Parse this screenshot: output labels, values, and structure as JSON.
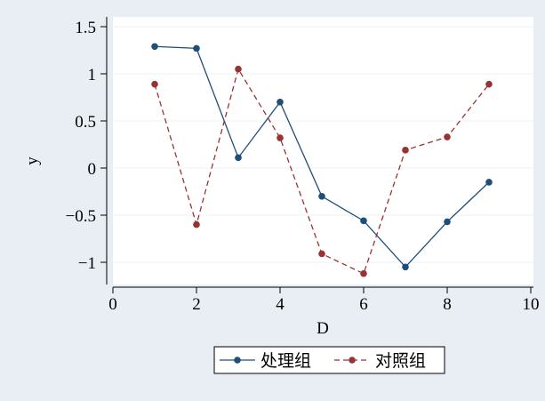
{
  "chart_data": {
    "type": "line",
    "xlabel": "D",
    "ylabel": "y",
    "xlim": [
      0,
      10
    ],
    "ylim": [
      -1.2,
      1.55
    ],
    "x_ticks": [
      "0",
      "2",
      "4",
      "6",
      "8",
      "10"
    ],
    "y_ticks": [
      "1.5",
      "1",
      "0.5",
      "0",
      "−0.5",
      "−1"
    ],
    "grid": "horizontal",
    "legend_placement": "bottom",
    "series": [
      {
        "name": "处理组",
        "color": "#1f4e79",
        "line_style": "solid",
        "x": [
          1,
          2,
          3,
          4,
          5,
          6,
          7,
          8,
          9
        ],
        "y": [
          1.29,
          1.27,
          0.11,
          0.7,
          -0.3,
          -0.56,
          -1.05,
          -0.57,
          -0.15
        ]
      },
      {
        "name": "对照组",
        "color": "#993333",
        "line_style": "dashed",
        "x": [
          1,
          2,
          3,
          4,
          5,
          6,
          7,
          8,
          9
        ],
        "y": [
          0.89,
          -0.6,
          1.05,
          0.32,
          -0.91,
          -1.12,
          0.19,
          0.33,
          0.89
        ]
      }
    ]
  }
}
